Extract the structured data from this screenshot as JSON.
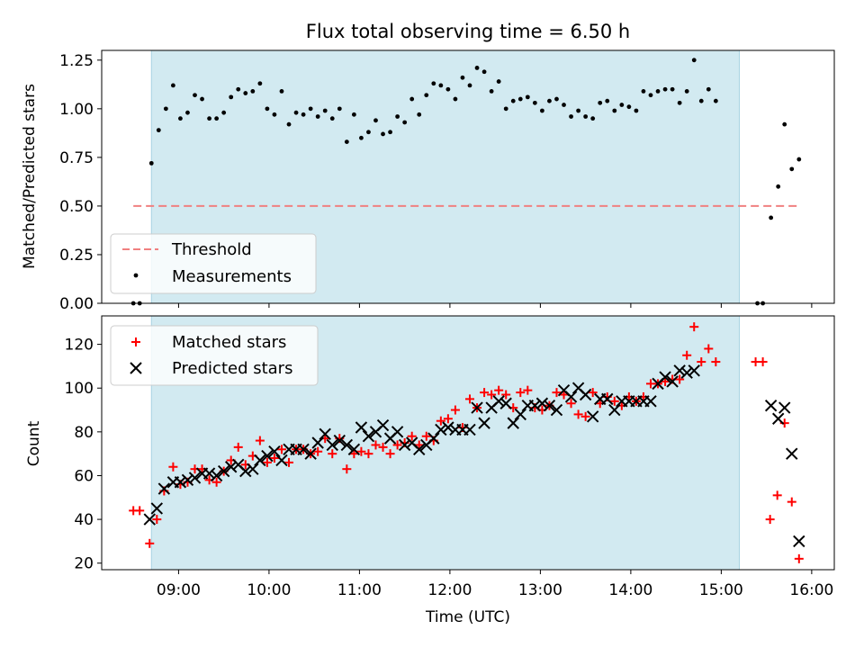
{
  "chart_data": [
    {
      "type": "scatter",
      "title": "Flux total observing time = 6.50 h",
      "ylabel": "Matched/Predicted stars",
      "xlabel": "",
      "x_unit": "hours (UTC)",
      "xlim": [
        8.15,
        16.25
      ],
      "ylim": [
        0,
        1.3
      ],
      "yticks": [
        "0.00",
        "0.25",
        "0.50",
        "0.75",
        "1.00",
        "1.25"
      ],
      "ytick_values": [
        0,
        0.25,
        0.5,
        0.75,
        1.0,
        1.25
      ],
      "shaded_span": [
        8.7,
        15.2
      ],
      "shade_color": "#d2eaf1",
      "threshold": {
        "name": "Threshold",
        "value": 0.5,
        "x_range": [
          8.5,
          15.85
        ],
        "color": "#f08080"
      },
      "legend": {
        "placement": "lower-left",
        "entries": [
          "Threshold",
          "Measurements"
        ]
      },
      "series": [
        {
          "name": "Measurements",
          "color": "#000000",
          "points": [
            [
              8.5,
              0.0
            ],
            [
              8.57,
              0.0
            ],
            [
              8.7,
              0.72
            ],
            [
              8.78,
              0.89
            ],
            [
              8.86,
              1.0
            ],
            [
              8.94,
              1.12
            ],
            [
              9.02,
              0.95
            ],
            [
              9.1,
              0.98
            ],
            [
              9.18,
              1.07
            ],
            [
              9.26,
              1.05
            ],
            [
              9.34,
              0.95
            ],
            [
              9.42,
              0.95
            ],
            [
              9.5,
              0.98
            ],
            [
              9.58,
              1.06
            ],
            [
              9.66,
              1.1
            ],
            [
              9.74,
              1.08
            ],
            [
              9.82,
              1.09
            ],
            [
              9.9,
              1.13
            ],
            [
              9.98,
              1.0
            ],
            [
              10.06,
              0.97
            ],
            [
              10.14,
              1.09
            ],
            [
              10.22,
              0.92
            ],
            [
              10.3,
              0.98
            ],
            [
              10.38,
              0.97
            ],
            [
              10.46,
              1.0
            ],
            [
              10.54,
              0.96
            ],
            [
              10.62,
              0.99
            ],
            [
              10.7,
              0.95
            ],
            [
              10.78,
              1.0
            ],
            [
              10.86,
              0.83
            ],
            [
              10.94,
              0.97
            ],
            [
              11.02,
              0.85
            ],
            [
              11.1,
              0.88
            ],
            [
              11.18,
              0.94
            ],
            [
              11.26,
              0.87
            ],
            [
              11.34,
              0.88
            ],
            [
              11.42,
              0.96
            ],
            [
              11.5,
              0.93
            ],
            [
              11.58,
              1.05
            ],
            [
              11.66,
              0.97
            ],
            [
              11.74,
              1.07
            ],
            [
              11.82,
              1.13
            ],
            [
              11.9,
              1.12
            ],
            [
              11.98,
              1.1
            ],
            [
              12.06,
              1.05
            ],
            [
              12.14,
              1.16
            ],
            [
              12.22,
              1.12
            ],
            [
              12.3,
              1.21
            ],
            [
              12.38,
              1.19
            ],
            [
              12.46,
              1.09
            ],
            [
              12.54,
              1.14
            ],
            [
              12.62,
              1.0
            ],
            [
              12.7,
              1.04
            ],
            [
              12.78,
              1.05
            ],
            [
              12.86,
              1.06
            ],
            [
              12.94,
              1.03
            ],
            [
              13.02,
              0.99
            ],
            [
              13.1,
              1.04
            ],
            [
              13.18,
              1.05
            ],
            [
              13.26,
              1.02
            ],
            [
              13.34,
              0.96
            ],
            [
              13.42,
              0.99
            ],
            [
              13.5,
              0.96
            ],
            [
              13.58,
              0.95
            ],
            [
              13.66,
              1.03
            ],
            [
              13.74,
              1.04
            ],
            [
              13.82,
              0.99
            ],
            [
              13.9,
              1.02
            ],
            [
              13.98,
              1.01
            ],
            [
              14.06,
              0.99
            ],
            [
              14.14,
              1.09
            ],
            [
              14.22,
              1.07
            ],
            [
              14.3,
              1.09
            ],
            [
              14.38,
              1.1
            ],
            [
              14.46,
              1.1
            ],
            [
              14.54,
              1.03
            ],
            [
              14.62,
              1.09
            ],
            [
              14.7,
              1.25
            ],
            [
              14.78,
              1.04
            ],
            [
              14.86,
              1.1
            ],
            [
              14.94,
              1.04
            ],
            [
              15.4,
              0.0
            ],
            [
              15.46,
              0.0
            ],
            [
              15.55,
              0.44
            ],
            [
              15.63,
              0.6
            ],
            [
              15.7,
              0.92
            ],
            [
              15.78,
              0.69
            ],
            [
              15.86,
              0.74
            ]
          ]
        }
      ]
    },
    {
      "type": "scatter",
      "title": "",
      "ylabel": "Count",
      "xlabel": "Time (UTC)",
      "x_unit": "hours (UTC)",
      "xlim": [
        8.15,
        16.25
      ],
      "ylim": [
        17,
        133
      ],
      "xticks": [
        "09:00",
        "10:00",
        "11:00",
        "12:00",
        "13:00",
        "14:00",
        "15:00",
        "16:00"
      ],
      "xtick_values": [
        9,
        10,
        11,
        12,
        13,
        14,
        15,
        16
      ],
      "yticks": [
        "20",
        "40",
        "60",
        "80",
        "100",
        "120"
      ],
      "ytick_values": [
        20,
        40,
        60,
        80,
        100,
        120
      ],
      "shaded_span": [
        8.7,
        15.2
      ],
      "shade_color": "#d2eaf1",
      "legend": {
        "placement": "top-left",
        "entries": [
          "Matched stars",
          "Predicted stars"
        ]
      },
      "series": [
        {
          "name": "Matched stars",
          "marker": "plus",
          "color": "#ff0000",
          "points": [
            [
              8.5,
              44
            ],
            [
              8.57,
              44
            ],
            [
              8.68,
              29
            ],
            [
              8.76,
              40
            ],
            [
              8.84,
              53
            ],
            [
              8.94,
              64
            ],
            [
              9.02,
              56
            ],
            [
              9.1,
              57
            ],
            [
              9.18,
              63
            ],
            [
              9.26,
              63
            ],
            [
              9.34,
              58
            ],
            [
              9.42,
              57
            ],
            [
              9.5,
              62
            ],
            [
              9.58,
              67
            ],
            [
              9.66,
              73
            ],
            [
              9.74,
              65
            ],
            [
              9.82,
              69
            ],
            [
              9.9,
              76
            ],
            [
              9.98,
              66
            ],
            [
              10.06,
              68
            ],
            [
              10.14,
              72
            ],
            [
              10.22,
              66
            ],
            [
              10.3,
              72
            ],
            [
              10.38,
              72
            ],
            [
              10.46,
              70
            ],
            [
              10.54,
              71
            ],
            [
              10.62,
              77
            ],
            [
              10.7,
              70
            ],
            [
              10.78,
              77
            ],
            [
              10.86,
              63
            ],
            [
              10.94,
              70
            ],
            [
              11.02,
              71
            ],
            [
              11.1,
              70
            ],
            [
              11.18,
              74
            ],
            [
              11.26,
              73
            ],
            [
              11.34,
              70
            ],
            [
              11.42,
              74
            ],
            [
              11.5,
              75
            ],
            [
              11.58,
              78
            ],
            [
              11.66,
              74
            ],
            [
              11.74,
              78
            ],
            [
              11.82,
              76
            ],
            [
              11.9,
              85
            ],
            [
              11.98,
              86
            ],
            [
              12.06,
              90
            ],
            [
              12.14,
              82
            ],
            [
              12.22,
              95
            ],
            [
              12.3,
              91
            ],
            [
              12.38,
              98
            ],
            [
              12.46,
              97
            ],
            [
              12.54,
              99
            ],
            [
              12.62,
              97
            ],
            [
              12.7,
              91
            ],
            [
              12.78,
              98
            ],
            [
              12.86,
              99
            ],
            [
              12.94,
              91
            ],
            [
              13.02,
              90
            ],
            [
              13.1,
              92
            ],
            [
              13.18,
              98
            ],
            [
              13.26,
              97
            ],
            [
              13.34,
              93
            ],
            [
              13.42,
              88
            ],
            [
              13.5,
              87
            ],
            [
              13.58,
              98
            ],
            [
              13.66,
              93
            ],
            [
              13.74,
              96
            ],
            [
              13.82,
              94
            ],
            [
              13.9,
              92
            ],
            [
              13.98,
              96
            ],
            [
              14.06,
              94
            ],
            [
              14.14,
              96
            ],
            [
              14.22,
              102
            ],
            [
              14.3,
              102
            ],
            [
              14.38,
              103
            ],
            [
              14.46,
              104
            ],
            [
              14.54,
              104
            ],
            [
              14.62,
              115
            ],
            [
              14.7,
              128
            ],
            [
              14.78,
              112
            ],
            [
              14.86,
              118
            ],
            [
              14.94,
              112
            ],
            [
              15.38,
              112
            ],
            [
              15.46,
              112
            ],
            [
              15.54,
              40
            ],
            [
              15.62,
              51
            ],
            [
              15.7,
              84
            ],
            [
              15.78,
              48
            ],
            [
              15.86,
              22
            ]
          ]
        },
        {
          "name": "Predicted stars",
          "marker": "x",
          "color": "#000000",
          "points": [
            [
              8.68,
              40
            ],
            [
              8.76,
              45
            ],
            [
              8.84,
              54
            ],
            [
              8.94,
              57
            ],
            [
              9.02,
              57
            ],
            [
              9.1,
              58
            ],
            [
              9.18,
              59
            ],
            [
              9.26,
              61
            ],
            [
              9.34,
              61
            ],
            [
              9.42,
              60
            ],
            [
              9.5,
              62
            ],
            [
              9.58,
              64
            ],
            [
              9.66,
              65
            ],
            [
              9.74,
              62
            ],
            [
              9.82,
              63
            ],
            [
              9.9,
              67
            ],
            [
              9.98,
              69
            ],
            [
              10.06,
              71
            ],
            [
              10.14,
              67
            ],
            [
              10.22,
              72
            ],
            [
              10.3,
              72
            ],
            [
              10.38,
              72
            ],
            [
              10.46,
              70
            ],
            [
              10.54,
              75
            ],
            [
              10.62,
              79
            ],
            [
              10.7,
              74
            ],
            [
              10.78,
              76
            ],
            [
              10.86,
              74
            ],
            [
              10.94,
              72
            ],
            [
              11.02,
              82
            ],
            [
              11.1,
              78
            ],
            [
              11.18,
              80
            ],
            [
              11.26,
              83
            ],
            [
              11.34,
              77
            ],
            [
              11.42,
              80
            ],
            [
              11.5,
              74
            ],
            [
              11.58,
              75
            ],
            [
              11.66,
              72
            ],
            [
              11.74,
              74
            ],
            [
              11.82,
              77
            ],
            [
              11.9,
              81
            ],
            [
              11.98,
              82
            ],
            [
              12.06,
              81
            ],
            [
              12.14,
              81
            ],
            [
              12.22,
              81
            ],
            [
              12.3,
              91
            ],
            [
              12.38,
              84
            ],
            [
              12.46,
              91
            ],
            [
              12.54,
              94
            ],
            [
              12.62,
              93
            ],
            [
              12.7,
              84
            ],
            [
              12.78,
              88
            ],
            [
              12.86,
              92
            ],
            [
              12.94,
              92
            ],
            [
              13.02,
              93
            ],
            [
              13.1,
              92
            ],
            [
              13.18,
              90
            ],
            [
              13.26,
              99
            ],
            [
              13.34,
              96
            ],
            [
              13.42,
              100
            ],
            [
              13.5,
              97
            ],
            [
              13.58,
              87
            ],
            [
              13.66,
              95
            ],
            [
              13.74,
              95
            ],
            [
              13.82,
              90
            ],
            [
              13.9,
              94
            ],
            [
              13.98,
              94
            ],
            [
              14.06,
              94
            ],
            [
              14.14,
              94
            ],
            [
              14.22,
              94
            ],
            [
              14.3,
              102
            ],
            [
              14.38,
              105
            ],
            [
              14.46,
              103
            ],
            [
              14.54,
              108
            ],
            [
              14.62,
              107
            ],
            [
              14.7,
              108
            ],
            [
              15.55,
              92
            ],
            [
              15.63,
              86
            ],
            [
              15.7,
              91
            ],
            [
              15.78,
              70
            ],
            [
              15.86,
              30
            ]
          ]
        }
      ]
    }
  ]
}
